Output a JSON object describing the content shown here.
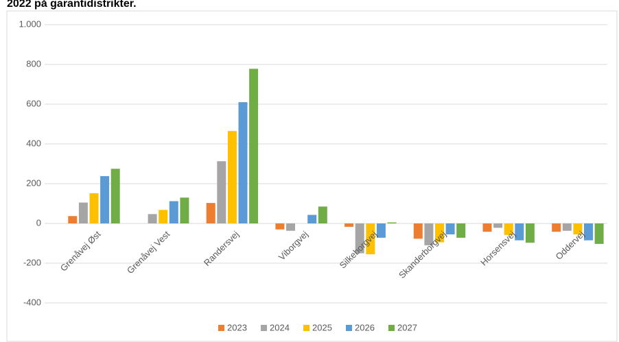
{
  "chart_data": {
    "type": "bar",
    "title": "2022 på garantidistrikter.",
    "categories": [
      "Grenåvej Øst",
      "Grenåvej Vest",
      "Randersvej",
      "Viborgvej",
      "Silkeborgvej",
      "Skanderborgvej",
      "Horsensvej",
      "Oddervej"
    ],
    "series": [
      {
        "name": "2023",
        "color": "#ed7d31",
        "values": [
          37,
          0,
          103,
          -30,
          -17,
          -77,
          -42,
          -42
        ]
      },
      {
        "name": "2024",
        "color": "#a5a5a5",
        "values": [
          105,
          47,
          313,
          -37,
          -150,
          -110,
          -22,
          -37
        ]
      },
      {
        "name": "2025",
        "color": "#ffc000",
        "values": [
          152,
          68,
          465,
          0,
          -155,
          -95,
          -58,
          -55
        ]
      },
      {
        "name": "2026",
        "color": "#5b9bd5",
        "values": [
          238,
          112,
          610,
          43,
          -72,
          -55,
          -85,
          -85
        ]
      },
      {
        "name": "2027",
        "color": "#70ad47",
        "values": [
          275,
          130,
          778,
          85,
          5,
          -72,
          -97,
          -103
        ]
      }
    ],
    "ylim": [
      -400,
      1000
    ],
    "yticks": [
      -400,
      -200,
      0,
      200,
      400,
      600,
      800,
      {
        "value": 1000,
        "label": "1.000"
      }
    ],
    "grid": true,
    "legend": "bottom"
  }
}
